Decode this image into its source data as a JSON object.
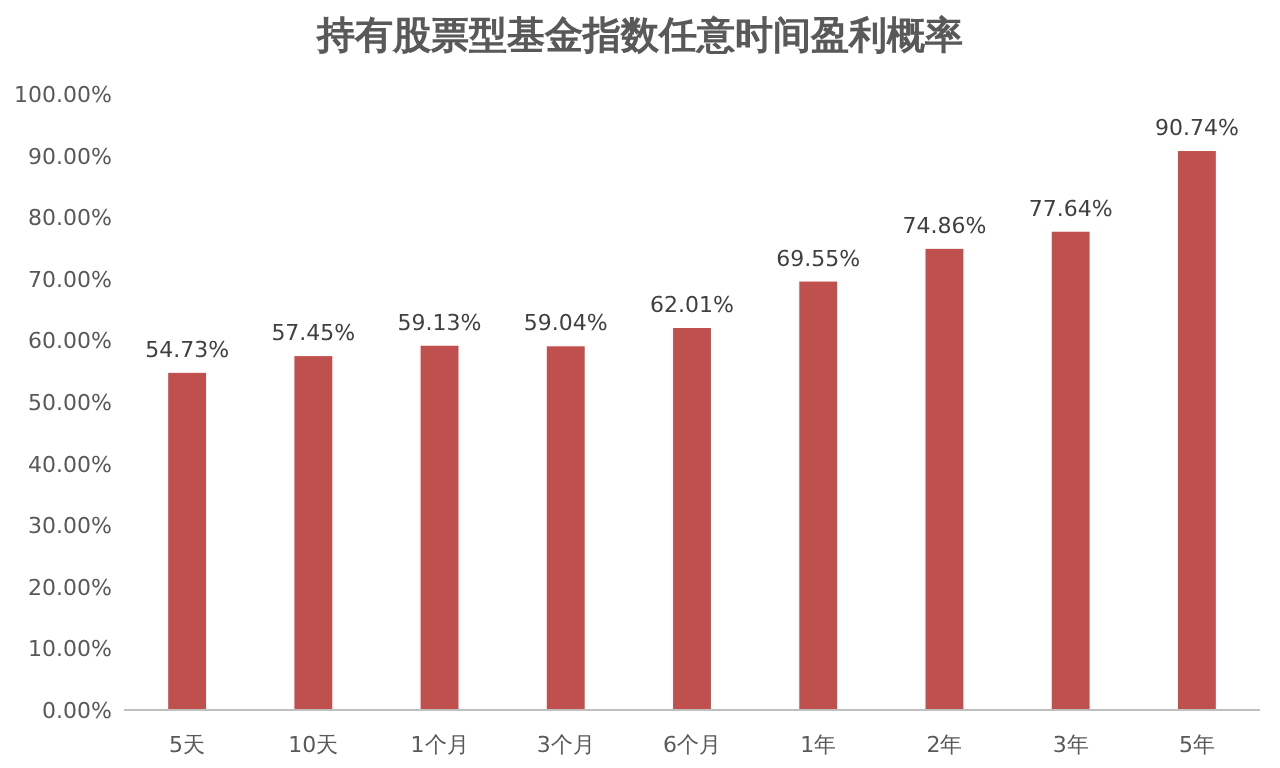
{
  "chart_data": {
    "type": "bar",
    "title": "持有股票型基金指数任意时间盈利概率",
    "categories": [
      "5天",
      "10天",
      "1个月",
      "3个月",
      "6个月",
      "1年",
      "2年",
      "3年",
      "5年"
    ],
    "values": [
      54.73,
      57.45,
      59.13,
      59.04,
      62.01,
      69.55,
      74.86,
      77.64,
      90.74
    ],
    "value_labels": [
      "54.73%",
      "57.45%",
      "59.13%",
      "59.04%",
      "62.01%",
      "69.55%",
      "74.86%",
      "77.64%",
      "90.74%"
    ],
    "color": "#c0504d",
    "ylim": [
      0,
      100
    ],
    "yticks": [
      {
        "value": 0,
        "label": "0.00%"
      },
      {
        "value": 10,
        "label": "10.00%"
      },
      {
        "value": 20,
        "label": "20.00%"
      },
      {
        "value": 30,
        "label": "30.00%"
      },
      {
        "value": 40,
        "label": "40.00%"
      },
      {
        "value": 50,
        "label": "50.00%"
      },
      {
        "value": 60,
        "label": "60.00%"
      },
      {
        "value": 70,
        "label": "70.00%"
      },
      {
        "value": 80,
        "label": "80.00%"
      },
      {
        "value": 90,
        "label": "90.00%"
      },
      {
        "value": 100,
        "label": "100.00%"
      }
    ],
    "grid": false
  }
}
